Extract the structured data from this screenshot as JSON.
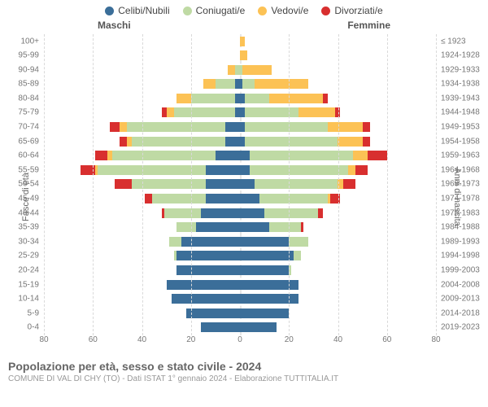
{
  "legend": {
    "items": [
      {
        "label": "Celibi/Nubili",
        "color": "#3b6e99"
      },
      {
        "label": "Coniugati/e",
        "color": "#bfdaa4"
      },
      {
        "label": "Vedovi/e",
        "color": "#fcc255"
      },
      {
        "label": "Divorziati/e",
        "color": "#d82f2f"
      }
    ]
  },
  "columns": {
    "male": "Maschi",
    "female": "Femmine"
  },
  "y_left_title": "Fasce di età",
  "y_right_title": "Anni di nascita",
  "title": "Popolazione per età, sesso e stato civile - 2024",
  "subtitle": "COMUNE DI VAL DI CHY (TO) - Dati ISTAT 1° gennaio 2024 - Elaborazione TUTTITALIA.IT",
  "chart": {
    "type": "population-pyramid-stacked",
    "x_max": 80,
    "x_ticks": [
      80,
      60,
      40,
      20,
      0,
      20,
      40,
      60,
      80
    ],
    "series_colors": {
      "celibi": "#3b6e99",
      "coniugati": "#bfdaa4",
      "vedovi": "#fcc255",
      "divorziati": "#d82f2f"
    },
    "background_color": "#ffffff",
    "grid_color": "#d9d9d9",
    "label_fontsize": 10,
    "rows": [
      {
        "age": "100+",
        "birth": "≤ 1923",
        "m": {
          "celibi": 0,
          "coniugati": 0,
          "vedovi": 0,
          "divorziati": 0
        },
        "f": {
          "celibi": 0,
          "coniugati": 0,
          "vedovi": 2,
          "divorziati": 0
        }
      },
      {
        "age": "95-99",
        "birth": "1924-1928",
        "m": {
          "celibi": 0,
          "coniugati": 0,
          "vedovi": 0,
          "divorziati": 0
        },
        "f": {
          "celibi": 0,
          "coniugati": 0,
          "vedovi": 3,
          "divorziati": 0
        }
      },
      {
        "age": "90-94",
        "birth": "1929-1933",
        "m": {
          "celibi": 0,
          "coniugati": 2,
          "vedovi": 3,
          "divorziati": 0
        },
        "f": {
          "celibi": 0,
          "coniugati": 1,
          "vedovi": 12,
          "divorziati": 0
        }
      },
      {
        "age": "85-89",
        "birth": "1934-1938",
        "m": {
          "celibi": 2,
          "coniugati": 8,
          "vedovi": 5,
          "divorziati": 0
        },
        "f": {
          "celibi": 1,
          "coniugati": 5,
          "vedovi": 22,
          "divorziati": 0
        }
      },
      {
        "age": "80-84",
        "birth": "1939-1943",
        "m": {
          "celibi": 2,
          "coniugati": 18,
          "vedovi": 6,
          "divorziati": 0
        },
        "f": {
          "celibi": 2,
          "coniugati": 10,
          "vedovi": 22,
          "divorziati": 2
        }
      },
      {
        "age": "75-79",
        "birth": "1944-1948",
        "m": {
          "celibi": 2,
          "coniugati": 25,
          "vedovi": 3,
          "divorziati": 2
        },
        "f": {
          "celibi": 2,
          "coniugati": 22,
          "vedovi": 15,
          "divorziati": 2
        }
      },
      {
        "age": "70-74",
        "birth": "1949-1953",
        "m": {
          "celibi": 6,
          "coniugati": 40,
          "vedovi": 3,
          "divorziati": 4
        },
        "f": {
          "celibi": 2,
          "coniugati": 34,
          "vedovi": 14,
          "divorziati": 3
        }
      },
      {
        "age": "65-69",
        "birth": "1954-1958",
        "m": {
          "celibi": 6,
          "coniugati": 38,
          "vedovi": 2,
          "divorziati": 3
        },
        "f": {
          "celibi": 2,
          "coniugati": 38,
          "vedovi": 10,
          "divorziati": 3
        }
      },
      {
        "age": "60-64",
        "birth": "1959-1963",
        "m": {
          "celibi": 10,
          "coniugati": 42,
          "vedovi": 2,
          "divorziati": 5
        },
        "f": {
          "celibi": 4,
          "coniugati": 42,
          "vedovi": 6,
          "divorziati": 8
        }
      },
      {
        "age": "55-59",
        "birth": "1964-1968",
        "m": {
          "celibi": 14,
          "coniugati": 44,
          "vedovi": 1,
          "divorziati": 6
        },
        "f": {
          "celibi": 4,
          "coniugati": 40,
          "vedovi": 3,
          "divorziati": 5
        }
      },
      {
        "age": "50-54",
        "birth": "1969-1973",
        "m": {
          "celibi": 14,
          "coniugati": 30,
          "vedovi": 0,
          "divorziati": 7
        },
        "f": {
          "celibi": 6,
          "coniugati": 34,
          "vedovi": 2,
          "divorziati": 5
        }
      },
      {
        "age": "45-49",
        "birth": "1974-1978",
        "m": {
          "celibi": 14,
          "coniugati": 22,
          "vedovi": 0,
          "divorziati": 3
        },
        "f": {
          "celibi": 8,
          "coniugati": 28,
          "vedovi": 1,
          "divorziati": 4
        }
      },
      {
        "age": "40-44",
        "birth": "1979-1983",
        "m": {
          "celibi": 16,
          "coniugati": 15,
          "vedovi": 0,
          "divorziati": 1
        },
        "f": {
          "celibi": 10,
          "coniugati": 22,
          "vedovi": 0,
          "divorziati": 2
        }
      },
      {
        "age": "35-39",
        "birth": "1984-1988",
        "m": {
          "celibi": 18,
          "coniugati": 8,
          "vedovi": 0,
          "divorziati": 0
        },
        "f": {
          "celibi": 12,
          "coniugati": 13,
          "vedovi": 0,
          "divorziati": 1
        }
      },
      {
        "age": "30-34",
        "birth": "1989-1993",
        "m": {
          "celibi": 24,
          "coniugati": 5,
          "vedovi": 0,
          "divorziati": 0
        },
        "f": {
          "celibi": 20,
          "coniugati": 8,
          "vedovi": 0,
          "divorziati": 0
        }
      },
      {
        "age": "25-29",
        "birth": "1994-1998",
        "m": {
          "celibi": 26,
          "coniugati": 1,
          "vedovi": 0,
          "divorziati": 0
        },
        "f": {
          "celibi": 22,
          "coniugati": 3,
          "vedovi": 0,
          "divorziati": 0
        }
      },
      {
        "age": "20-24",
        "birth": "1999-2003",
        "m": {
          "celibi": 26,
          "coniugati": 0,
          "vedovi": 0,
          "divorziati": 0
        },
        "f": {
          "celibi": 20,
          "coniugati": 1,
          "vedovi": 0,
          "divorziati": 0
        }
      },
      {
        "age": "15-19",
        "birth": "2004-2008",
        "m": {
          "celibi": 30,
          "coniugati": 0,
          "vedovi": 0,
          "divorziati": 0
        },
        "f": {
          "celibi": 24,
          "coniugati": 0,
          "vedovi": 0,
          "divorziati": 0
        }
      },
      {
        "age": "10-14",
        "birth": "2009-2013",
        "m": {
          "celibi": 28,
          "coniugati": 0,
          "vedovi": 0,
          "divorziati": 0
        },
        "f": {
          "celibi": 24,
          "coniugati": 0,
          "vedovi": 0,
          "divorziati": 0
        }
      },
      {
        "age": "5-9",
        "birth": "2014-2018",
        "m": {
          "celibi": 22,
          "coniugati": 0,
          "vedovi": 0,
          "divorziati": 0
        },
        "f": {
          "celibi": 20,
          "coniugati": 0,
          "vedovi": 0,
          "divorziati": 0
        }
      },
      {
        "age": "0-4",
        "birth": "2019-2023",
        "m": {
          "celibi": 16,
          "coniugati": 0,
          "vedovi": 0,
          "divorziati": 0
        },
        "f": {
          "celibi": 15,
          "coniugati": 0,
          "vedovi": 0,
          "divorziati": 0
        }
      }
    ]
  }
}
